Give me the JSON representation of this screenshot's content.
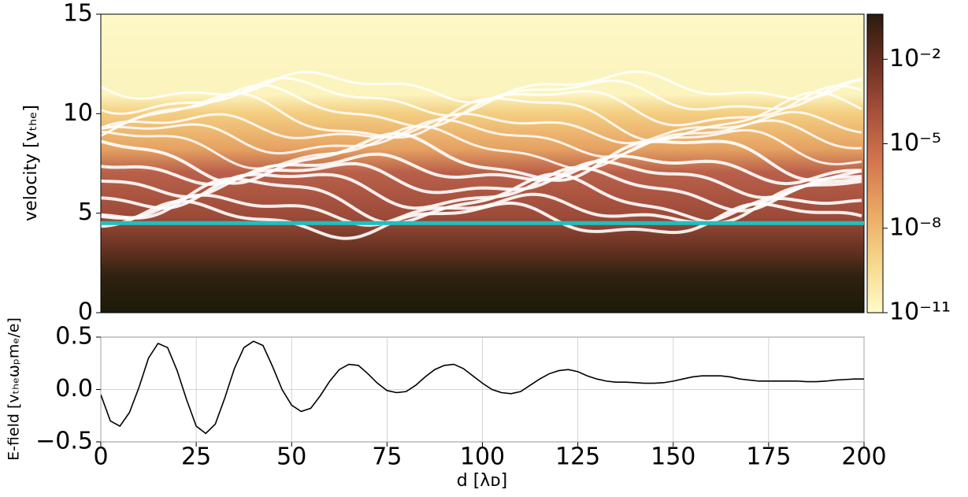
{
  "chart_data": [
    {
      "type": "heatmap",
      "ylabel": "velocity [vₜₕₑ]",
      "xlim": [
        0,
        200
      ],
      "ylim": [
        0,
        15
      ],
      "yticks": [
        0,
        5,
        10,
        15
      ],
      "hline": {
        "value": 4.5,
        "color": "#1fbfbf"
      },
      "colorbar": {
        "scale": "log",
        "lim": [
          1e-11,
          0.4
        ],
        "ticks": [
          {
            "value": 1e-11,
            "label": "10⁻¹¹"
          },
          {
            "value": 1e-08,
            "label": "10⁻⁸"
          },
          {
            "value": 1e-05,
            "label": "10⁻⁵"
          },
          {
            "value": 0.01,
            "label": "10⁻²"
          }
        ],
        "colormap": [
          "#fffbc8",
          "#f6d88c",
          "#eba964",
          "#d5774f",
          "#a9503b",
          "#6d3023",
          "#2a1c0e"
        ]
      }
    },
    {
      "type": "line",
      "xlabel": "d [λᴅ]",
      "ylabel": "E-field [vₜₕₑωₚmₑ/e]",
      "xlim": [
        0,
        200
      ],
      "ylim": [
        -0.5,
        0.5
      ],
      "xticks": [
        0,
        25,
        50,
        75,
        100,
        125,
        150,
        175,
        200
      ],
      "yticks": [
        {
          "value": -0.5,
          "label": "−0.5"
        },
        {
          "value": 0,
          "label": "0.0"
        },
        {
          "value": 0.5,
          "label": "0.5"
        }
      ],
      "grid": true,
      "x": [
        0,
        2.5,
        5,
        7.5,
        10,
        12.5,
        15,
        17.5,
        20,
        22.5,
        25,
        27.5,
        30,
        32.5,
        35,
        37.5,
        40,
        42.5,
        45,
        47.5,
        50,
        52.5,
        55,
        57.5,
        60,
        62.5,
        65,
        67.5,
        70,
        72.5,
        75,
        77.5,
        80,
        82.5,
        85,
        87.5,
        90,
        92.5,
        95,
        97.5,
        100,
        102.5,
        105,
        107.5,
        110,
        112.5,
        115,
        117.5,
        120,
        122.5,
        125,
        127.5,
        130,
        132.5,
        135,
        137.5,
        140,
        142.5,
        145,
        147.5,
        150,
        152.5,
        155,
        157.5,
        160,
        162.5,
        165,
        167.5,
        170,
        172.5,
        175,
        177.5,
        180,
        182.5,
        185,
        187.5,
        190,
        192.5,
        195,
        197.5,
        200
      ],
      "series": [
        {
          "color": "#000000",
          "values": [
            -0.05,
            -0.3,
            -0.35,
            -0.22,
            0.02,
            0.3,
            0.44,
            0.4,
            0.18,
            -0.1,
            -0.35,
            -0.42,
            -0.33,
            -0.08,
            0.2,
            0.4,
            0.46,
            0.42,
            0.22,
            0.0,
            -0.15,
            -0.21,
            -0.18,
            -0.06,
            0.08,
            0.19,
            0.24,
            0.23,
            0.15,
            0.06,
            -0.01,
            -0.03,
            -0.02,
            0.04,
            0.12,
            0.19,
            0.23,
            0.24,
            0.2,
            0.13,
            0.06,
            0.0,
            -0.03,
            -0.04,
            -0.02,
            0.04,
            0.1,
            0.15,
            0.18,
            0.19,
            0.17,
            0.13,
            0.1,
            0.08,
            0.07,
            0.07,
            0.065,
            0.06,
            0.06,
            0.065,
            0.08,
            0.1,
            0.12,
            0.13,
            0.13,
            0.13,
            0.12,
            0.1,
            0.09,
            0.08,
            0.08,
            0.08,
            0.08,
            0.08,
            0.075,
            0.075,
            0.08,
            0.09,
            0.095,
            0.1,
            0.1
          ]
        }
      ]
    }
  ]
}
